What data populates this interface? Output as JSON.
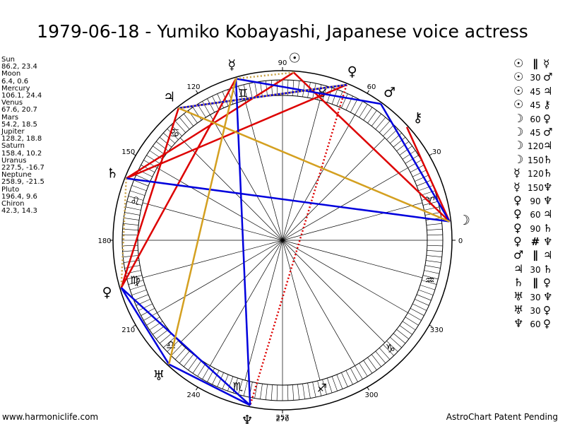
{
  "title": "1979-06-18 - Yumiko Kobayashi, Japanese voice actress",
  "positions": [
    {
      "name": "Sun",
      "coords": "86.2, 23.4"
    },
    {
      "name": "Moon",
      "coords": "6.4, 0.6"
    },
    {
      "name": "Mercury",
      "coords": "106.1, 24.4"
    },
    {
      "name": "Venus",
      "coords": "67.6, 20.7"
    },
    {
      "name": "Mars",
      "coords": "54.2, 18.5"
    },
    {
      "name": "Jupiter",
      "coords": "128.2, 18.8"
    },
    {
      "name": "Saturn",
      "coords": "158.4, 10.2"
    },
    {
      "name": "Uranus",
      "coords": "227.5, -16.7"
    },
    {
      "name": "Neptune",
      "coords": "258.9, -21.5"
    },
    {
      "name": "Pluto",
      "coords": "196.4, 9.6"
    },
    {
      "name": "Chiron",
      "coords": "42.3, 14.3"
    }
  ],
  "aspects": [
    {
      "p1": "☉",
      "asp": "∥",
      "p2": "☿",
      "sym": true
    },
    {
      "p1": "☉",
      "asp": "30",
      "p2": "♂",
      "sym": false
    },
    {
      "p1": "☉",
      "asp": "45",
      "p2": "♃",
      "sym": false
    },
    {
      "p1": "☉",
      "asp": "45",
      "p2": "⚷",
      "sym": false
    },
    {
      "p1": "☽",
      "asp": "60",
      "p2": "♀",
      "sym": false
    },
    {
      "p1": "☽",
      "asp": "45",
      "p2": "♂",
      "sym": false
    },
    {
      "p1": "☽",
      "asp": "120",
      "p2": "♃",
      "sym": false
    },
    {
      "p1": "☽",
      "asp": "150",
      "p2": "♄",
      "sym": false
    },
    {
      "p1": "☿",
      "asp": "120",
      "p2": "♄",
      "sym": false
    },
    {
      "p1": "☿",
      "asp": "150",
      "p2": "♆",
      "sym": false
    },
    {
      "p1": "♀",
      "asp": "90",
      "p2": "♆",
      "sym": false
    },
    {
      "p1": "♀",
      "asp": "60",
      "p2": "♃",
      "sym": false
    },
    {
      "p1": "♀",
      "asp": "90",
      "p2": "♄",
      "sym": false
    },
    {
      "p1": "♀",
      "asp": "#",
      "p2": "♆",
      "sym": true
    },
    {
      "p1": "♂",
      "asp": "∥",
      "p2": "♃",
      "sym": true
    },
    {
      "p1": "♃",
      "asp": "30",
      "p2": "♄",
      "sym": false
    },
    {
      "p1": "♄",
      "asp": "∥",
      "p2": "♀",
      "sym": true
    },
    {
      "p1": "♅",
      "asp": "30",
      "p2": "♆",
      "sym": false
    },
    {
      "p1": "♅",
      "asp": "30",
      "p2": "♀",
      "sym": false
    },
    {
      "p1": "♆",
      "asp": "60",
      "p2": "♀",
      "sym": false
    }
  ],
  "wheel": {
    "degree_labels": [
      "0",
      "30",
      "60",
      "90",
      "120",
      "150",
      "180",
      "210",
      "240",
      "270",
      "300",
      "330"
    ],
    "bottom_value": "257",
    "planets": [
      {
        "name": "sun",
        "glyph": "☉",
        "lon": 86.2
      },
      {
        "name": "moon",
        "glyph": "☽",
        "lon": 6.4
      },
      {
        "name": "mercury",
        "glyph": "☿",
        "lon": 106.1
      },
      {
        "name": "venus",
        "glyph": "♀",
        "lon": 67.6
      },
      {
        "name": "mars",
        "glyph": "♂",
        "lon": 54.2
      },
      {
        "name": "jupiter",
        "glyph": "♃",
        "lon": 128.2
      },
      {
        "name": "saturn",
        "glyph": "♄",
        "lon": 158.4
      },
      {
        "name": "uranus",
        "glyph": "♅",
        "lon": 227.5
      },
      {
        "name": "neptune",
        "glyph": "♆",
        "lon": 258.9
      },
      {
        "name": "pluto",
        "glyph": "♀",
        "lon": 196.4
      },
      {
        "name": "chiron",
        "glyph": "⚷",
        "lon": 42.3
      }
    ],
    "signs": [
      {
        "name": "aries",
        "glyph": "♈",
        "lon": 15
      },
      {
        "name": "taurus",
        "glyph": "♉",
        "lon": 75
      },
      {
        "name": "gemini",
        "glyph": "♊",
        "lon": 105
      },
      {
        "name": "cancer",
        "glyph": "♋",
        "lon": 135
      },
      {
        "name": "leo",
        "glyph": "♌",
        "lon": 165
      },
      {
        "name": "virgo",
        "glyph": "♍",
        "lon": 195
      },
      {
        "name": "libra",
        "glyph": "♎",
        "lon": 223
      },
      {
        "name": "scorpio",
        "glyph": "♏",
        "lon": 253
      },
      {
        "name": "sagittarius",
        "glyph": "♐",
        "lon": 285
      },
      {
        "name": "capricorn",
        "glyph": "♑",
        "lon": 315
      },
      {
        "name": "aquarius",
        "glyph": "♒",
        "lon": 345
      }
    ],
    "aspect_lines": [
      {
        "a": "moon",
        "b": "sun",
        "color": "#dd0000",
        "style": "solid"
      },
      {
        "a": "sun",
        "b": "saturn",
        "color": "#dd0000",
        "style": "solid"
      },
      {
        "a": "moon",
        "b": "chiron",
        "color": "#dd0000",
        "style": "solid"
      },
      {
        "a": "venus",
        "b": "jupiter",
        "color": "#dd0000",
        "style": "solid"
      },
      {
        "a": "jupiter",
        "b": "pluto",
        "color": "#dd0000",
        "style": "solid"
      },
      {
        "a": "mercury",
        "b": "pluto",
        "color": "#dd0000",
        "style": "solid"
      },
      {
        "a": "venus",
        "b": "saturn",
        "color": "#dd0000",
        "style": "solid"
      },
      {
        "a": "venus",
        "b": "neptune",
        "color": "#dd0000",
        "style": "dotted"
      },
      {
        "a": "moon",
        "b": "saturn",
        "color": "#0000dd",
        "style": "solid"
      },
      {
        "a": "moon",
        "b": "mars",
        "color": "#0000dd",
        "style": "solid"
      },
      {
        "a": "jupiter",
        "b": "venus",
        "color": "#0000dd",
        "style": "solid"
      },
      {
        "a": "mercury",
        "b": "neptune",
        "color": "#0000dd",
        "style": "solid"
      },
      {
        "a": "mercury",
        "b": "mars",
        "color": "#0000dd",
        "style": "solid"
      },
      {
        "a": "pluto",
        "b": "uranus",
        "color": "#0000dd",
        "style": "solid"
      },
      {
        "a": "pluto",
        "b": "neptune",
        "color": "#0000dd",
        "style": "solid"
      },
      {
        "a": "uranus",
        "b": "neptune",
        "color": "#0000dd",
        "style": "solid"
      },
      {
        "a": "jupiter",
        "b": "moon",
        "color": "#d4a020",
        "style": "solid"
      },
      {
        "a": "mercury",
        "b": "uranus",
        "color": "#d4a020",
        "style": "solid"
      },
      {
        "a": "mercury",
        "b": "sun",
        "color": "#c8a040",
        "style": "dotted"
      },
      {
        "a": "jupiter",
        "b": "venus",
        "color": "#c8a040",
        "style": "dotted"
      },
      {
        "a": "saturn",
        "b": "pluto",
        "color": "#c8a040",
        "style": "dotted"
      }
    ]
  },
  "footer_left": "www.harmoniclife.com",
  "footer_right": "AstroChart Patent Pending"
}
